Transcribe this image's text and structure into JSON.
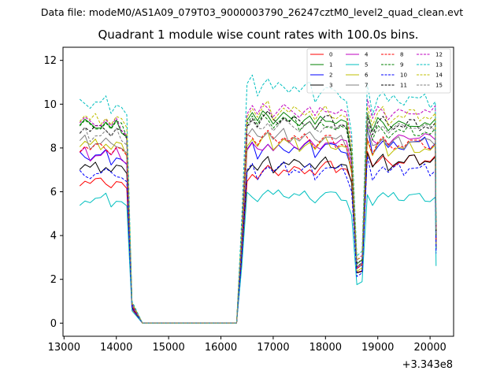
{
  "chart_data": {
    "type": "line",
    "suptitle": "Data file: modeM0/AS1A09_079T03_9000003790_26247cztM0_level2_quad_clean.evt",
    "title": "Quadrant 1 module wise count rates with 100.0s bins.",
    "xlabel": "",
    "ylabel": "",
    "x_offset_label": "+3.343e8",
    "xlim": [
      12980,
      20450
    ],
    "ylim": [
      -0.6,
      12.6
    ],
    "xticks": [
      13000,
      14000,
      15000,
      16000,
      17000,
      18000,
      19000,
      20000
    ],
    "yticks": [
      0,
      2,
      4,
      6,
      8,
      10,
      12
    ],
    "legend_location": "top-right",
    "x_segments": [
      {
        "start": 13300,
        "end": 14200
      },
      {
        "start": 14300,
        "end": 16300
      },
      {
        "start": 16400,
        "end": 20100
      }
    ],
    "profile": {
      "seg1": [
        1.0,
        1.02,
        0.99,
        1.01,
        1.0,
        1.02,
        0.98,
        1.01,
        0.99,
        1.0
      ],
      "seg2": [
        1.0,
        1.03,
        0.98,
        1.02,
        1.04,
        0.99,
        1.01,
        1.03,
        1.0,
        1.02,
        0.99,
        1.01,
        1.02,
        0.97,
        1.0,
        1.02,
        1.01,
        0.99,
        1.0,
        0.98,
        1.02,
        0.99,
        1.0,
        0.98,
        1.01,
        1.0,
        1.02,
        0.97,
        0.99,
        1.0,
        0.98,
        1.01,
        1.0,
        0.99,
        1.0,
        0.98,
        1.0,
        0.99
      ],
      "transitions": {
        "14200": 0.95,
        "14300": 0.1,
        "14400": 0.05,
        "16400": 0.45,
        "18500": 0.85,
        "18600": 0.3,
        "18700": 0.32,
        "18800": 1.05,
        "18900": 0.95,
        "20200": 0.45
      }
    },
    "series": [
      {
        "name": "0",
        "color": "#ff0000",
        "dash": "solid",
        "base": [
          6.4,
          6.7,
          7.6
        ]
      },
      {
        "name": "1",
        "color": "#008000",
        "dash": "solid",
        "base": [
          9.0,
          9.3,
          9.1
        ]
      },
      {
        "name": "2",
        "color": "#0000ff",
        "dash": "solid",
        "base": [
          7.6,
          7.8,
          8.3
        ]
      },
      {
        "name": "3",
        "color": "#000000",
        "dash": "solid",
        "base": [
          7.1,
          7.1,
          7.5
        ]
      },
      {
        "name": "4",
        "color": "#bf00bf",
        "dash": "solid",
        "base": [
          7.7,
          7.9,
          8.6
        ]
      },
      {
        "name": "5",
        "color": "#00bfbf",
        "dash": "solid",
        "base": [
          5.6,
          5.8,
          5.8
        ]
      },
      {
        "name": "6",
        "color": "#bfbf00",
        "dash": "solid",
        "base": [
          8.1,
          8.2,
          8.0
        ]
      },
      {
        "name": "7",
        "color": "#808080",
        "dash": "solid",
        "base": [
          8.2,
          8.5,
          8.3
        ]
      },
      {
        "name": "8",
        "color": "#ff0000",
        "dash": "dashed",
        "base": [
          8.0,
          8.4,
          8.2
        ]
      },
      {
        "name": "9",
        "color": "#008000",
        "dash": "dashed",
        "base": [
          9.0,
          9.2,
          8.7
        ]
      },
      {
        "name": "10",
        "color": "#0000ff",
        "dash": "dashed",
        "base": [
          6.8,
          6.9,
          7.1
        ]
      },
      {
        "name": "11",
        "color": "#000000",
        "dash": "dashed",
        "base": [
          8.8,
          9.2,
          9.1
        ]
      },
      {
        "name": "12",
        "color": "#bf00bf",
        "dash": "dashed",
        "base": [
          9.1,
          9.6,
          9.7
        ]
      },
      {
        "name": "13",
        "color": "#00bfbf",
        "dash": "dashed",
        "base": [
          10.0,
          10.8,
          10.2
        ]
      },
      {
        "name": "14",
        "color": "#bfbf00",
        "dash": "dashed",
        "base": [
          9.3,
          9.6,
          9.5
        ]
      },
      {
        "name": "15",
        "color": "#808080",
        "dash": "dashed",
        "base": [
          8.6,
          8.9,
          9.0
        ]
      }
    ]
  }
}
